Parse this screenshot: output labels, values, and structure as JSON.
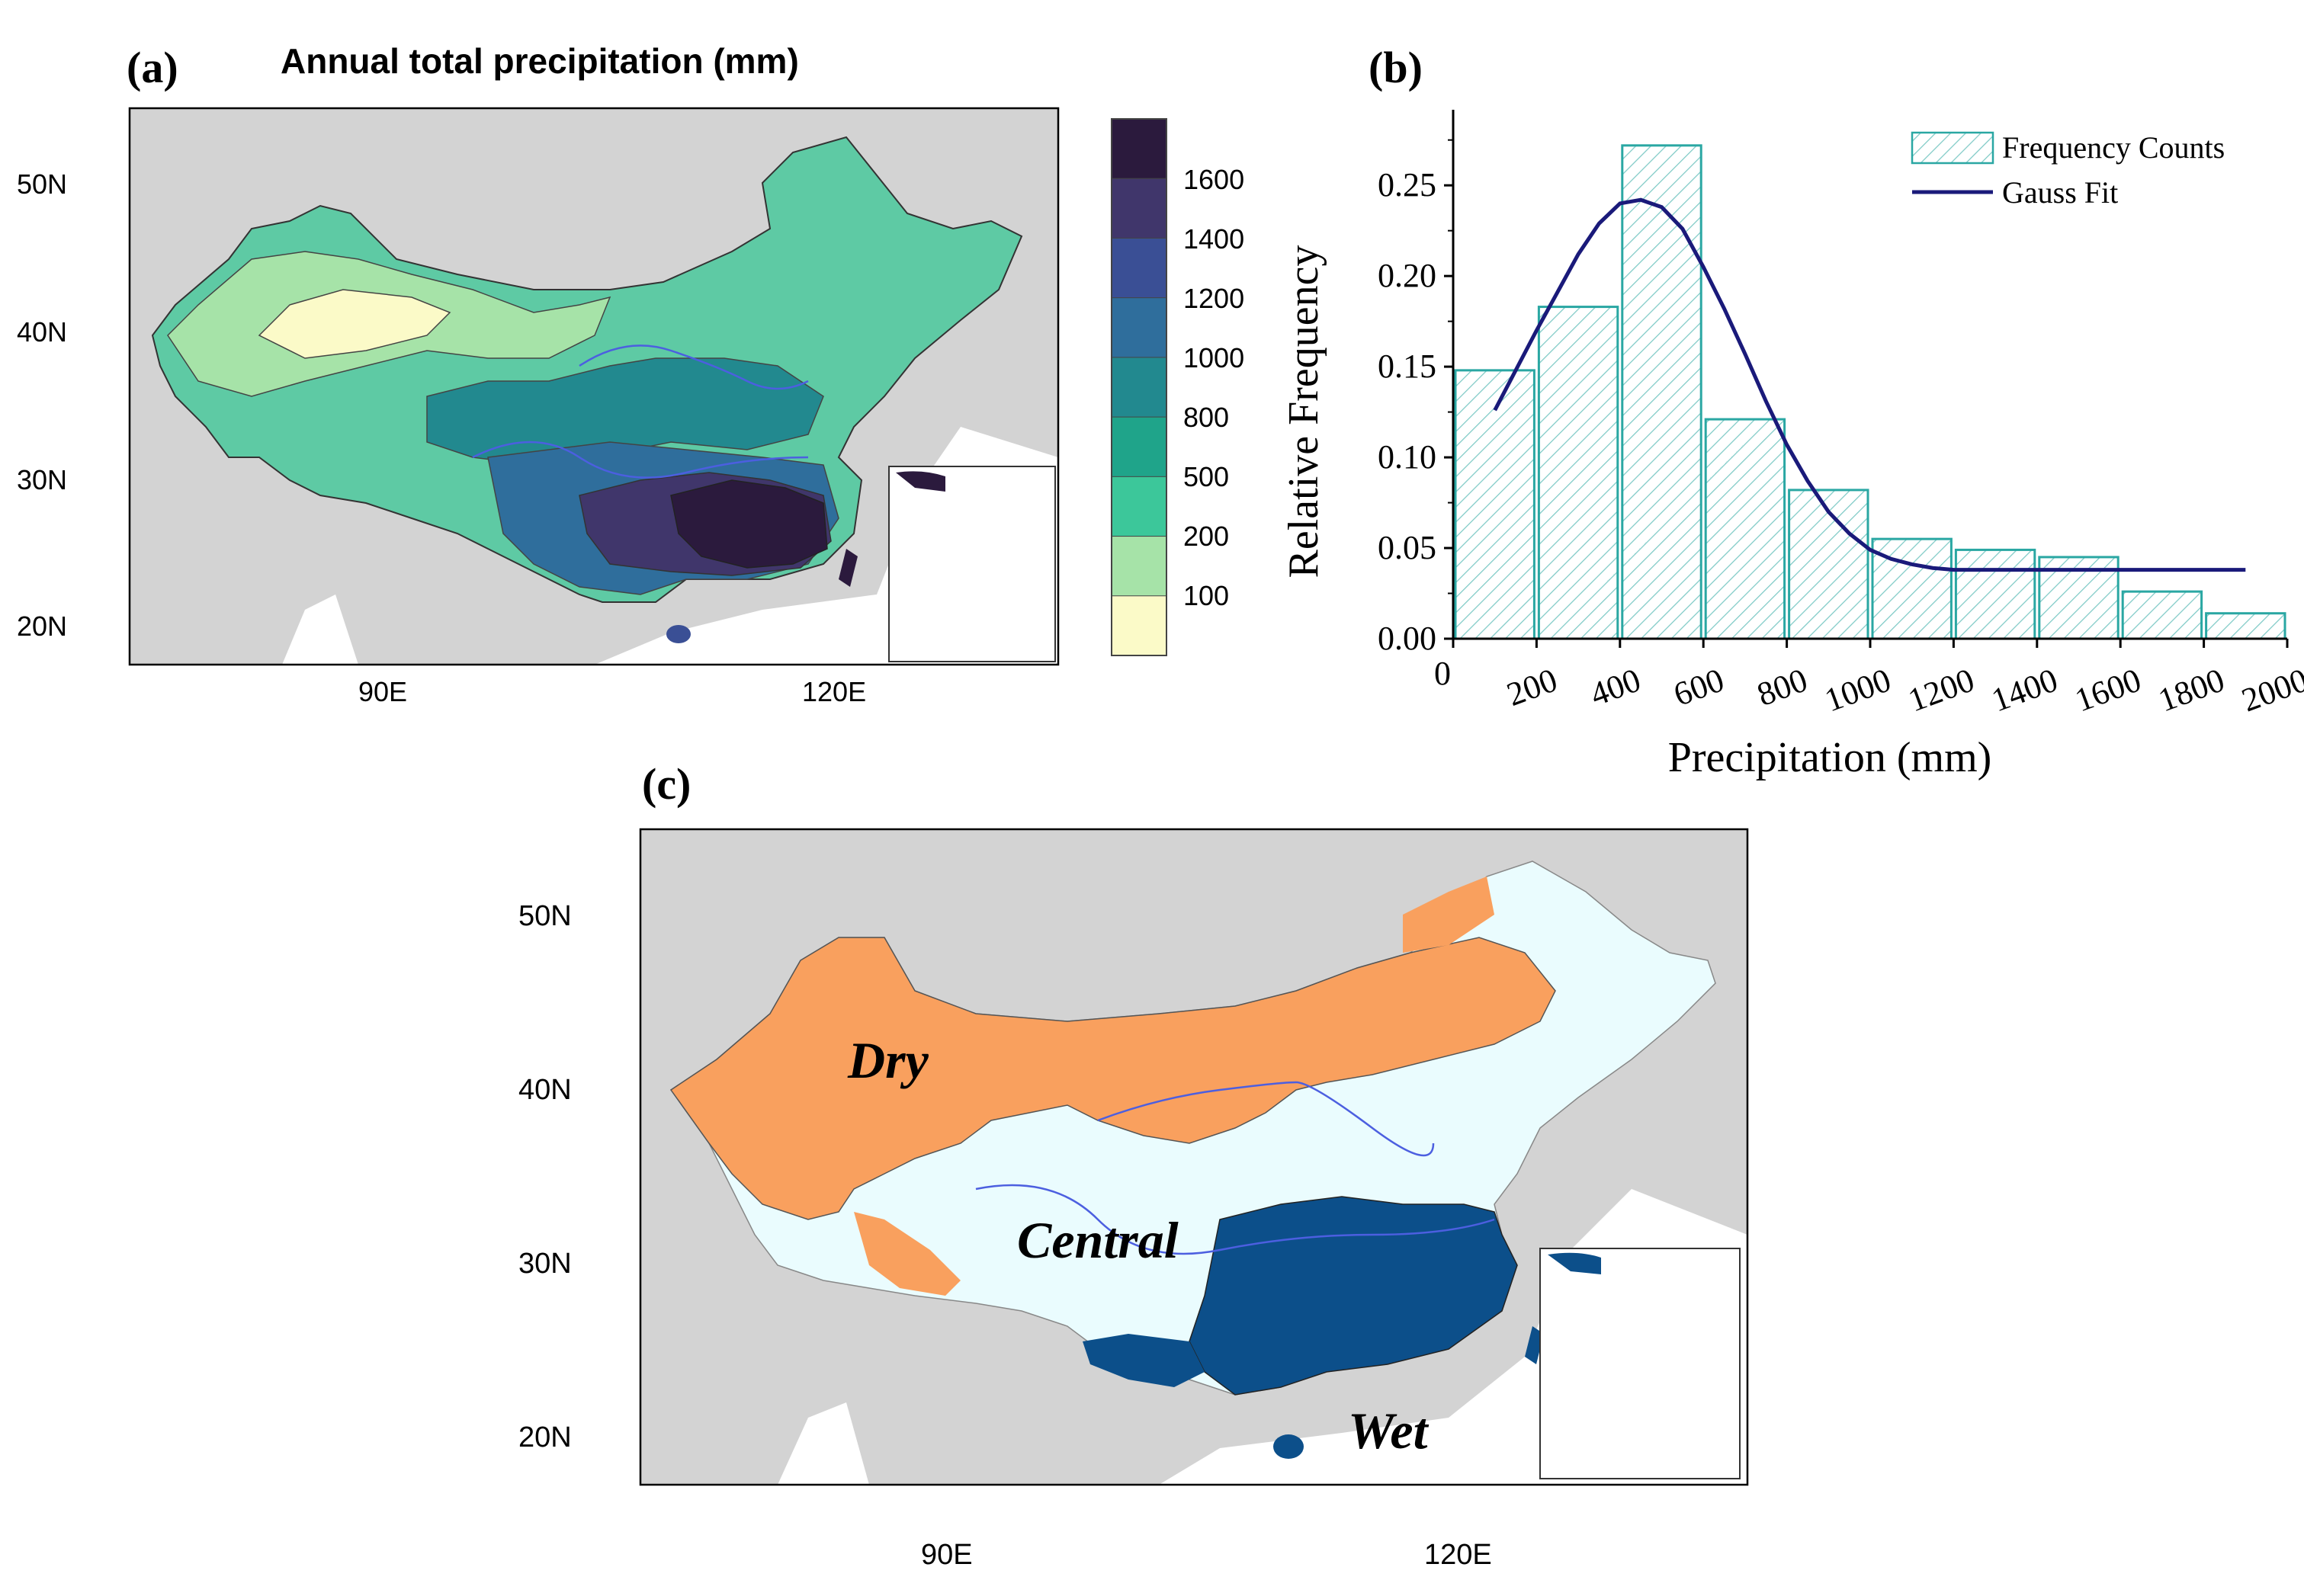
{
  "panel_a": {
    "label": "(a)",
    "title": "Annual total precipitation (mm)",
    "lat_ticks": [
      "50N",
      "40N",
      "30N",
      "20N"
    ],
    "lon_ticks": [
      "90E",
      "120E"
    ],
    "colorbar_labels": [
      "1600",
      "1400",
      "1200",
      "1000",
      "800",
      "500",
      "200",
      "100"
    ],
    "colorbar_colors": [
      "#2b1a3d",
      "#40366b",
      "#3a4f95",
      "#2f6e9c",
      "#22898f",
      "#1fa48a",
      "#3cc79a",
      "#a6e3a8",
      "#fbfac8"
    ]
  },
  "panel_c": {
    "label": "(c)",
    "lat_ticks": [
      "50N",
      "40N",
      "30N",
      "20N"
    ],
    "lon_ticks": [
      "90E",
      "120E"
    ],
    "region_labels": {
      "dry": "Dry",
      "central": "Central",
      "wet": "Wet"
    },
    "colors": {
      "dry": "#f9a05e",
      "central": "#eafcfe",
      "wet": "#0c4f8a",
      "ocean": "#ffffff",
      "land": "#d3d3d3"
    }
  },
  "chart_data": {
    "type": "bar",
    "label": "(b)",
    "title": "",
    "xlabel": "Precipitation (mm)",
    "ylabel": "Relative Frequency",
    "xlim": [
      0,
      2000
    ],
    "ylim": [
      0,
      0.29
    ],
    "x_ticks": [
      "0",
      "200",
      "400",
      "600",
      "800",
      "1000",
      "1200",
      "1400",
      "1600",
      "1800",
      "2000"
    ],
    "y_ticks": [
      "0.00",
      "0.05",
      "0.10",
      "0.15",
      "0.20",
      "0.25"
    ],
    "bins": [
      {
        "x0": 0,
        "x1": 200,
        "value": 0.148
      },
      {
        "x0": 200,
        "x1": 400,
        "value": 0.183
      },
      {
        "x0": 400,
        "x1": 600,
        "value": 0.272
      },
      {
        "x0": 600,
        "x1": 800,
        "value": 0.121
      },
      {
        "x0": 800,
        "x1": 1000,
        "value": 0.082
      },
      {
        "x0": 1000,
        "x1": 1200,
        "value": 0.055
      },
      {
        "x0": 1200,
        "x1": 1400,
        "value": 0.049
      },
      {
        "x0": 1400,
        "x1": 1600,
        "value": 0.045
      },
      {
        "x0": 1600,
        "x1": 1800,
        "value": 0.026
      },
      {
        "x0": 1800,
        "x1": 2000,
        "value": 0.014
      }
    ],
    "gauss_fit": {
      "x": [
        100,
        150,
        200,
        250,
        300,
        350,
        400,
        450,
        500,
        550,
        600,
        650,
        700,
        750,
        800,
        850,
        900,
        950,
        1000,
        1050,
        1100,
        1150,
        1200,
        1300,
        1400,
        1500,
        1600,
        1700,
        1800,
        1900
      ],
      "y": [
        0.126,
        0.148,
        0.17,
        0.191,
        0.212,
        0.229,
        0.24,
        0.242,
        0.238,
        0.226,
        0.205,
        0.182,
        0.157,
        0.131,
        0.107,
        0.087,
        0.07,
        0.058,
        0.049,
        0.044,
        0.041,
        0.039,
        0.038,
        0.038,
        0.038,
        0.038,
        0.038,
        0.038,
        0.038,
        0.038
      ]
    },
    "legend": {
      "bars": "Frequency Counts",
      "line": "Gauss Fit",
      "position": "top-right"
    },
    "colors": {
      "bar_edge": "#2aa7a3",
      "line": "#1a1a7a"
    }
  }
}
